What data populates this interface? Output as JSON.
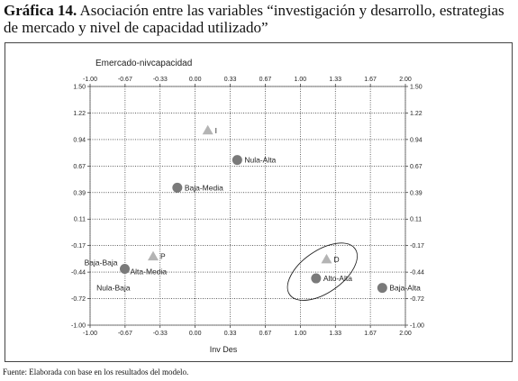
{
  "title_bold": "Gráfica 14.",
  "title_rest": " Asociación entre las variables “investigación y desarrollo, estrategias de mercado y nivel de capacidad utilizado”",
  "source": "Fuente: Elaborada con base en los resultados del modelo.",
  "colors": {
    "point": "#7a7a7a",
    "triangle": "#b4b4b4",
    "grid": "#000000"
  },
  "chart_data": {
    "type": "scatter",
    "title": "",
    "top_label": "Emercado-nivcapacidad",
    "xlabel": "Inv Des",
    "ylabel": "",
    "xlim": [
      -1.0,
      2.0
    ],
    "ylim": [
      -1.0,
      1.5
    ],
    "x_ticks": [
      "-1.00",
      "-0.67",
      "-0.33",
      "0.00",
      "0.33",
      "0.67",
      "1.00",
      "1.33",
      "1.67",
      "2.00"
    ],
    "y_ticks": [
      "1.50",
      "1.22",
      "0.94",
      "0.67",
      "0.39",
      "0.11",
      "-0.17",
      "-0.44",
      "-0.72",
      "-1.00"
    ],
    "grid": true,
    "points": [
      {
        "label": "I",
        "x": 0.12,
        "y": 1.04,
        "marker": "triangle"
      },
      {
        "label": "P",
        "x": -0.4,
        "y": -0.28,
        "marker": "triangle"
      },
      {
        "label": "D",
        "x": 1.25,
        "y": -0.31,
        "marker": "triangle"
      },
      {
        "label": "Nula-Alta",
        "x": 0.4,
        "y": 0.73,
        "marker": "circle"
      },
      {
        "label": "Baja-Media",
        "x": -0.17,
        "y": 0.44,
        "marker": "circle"
      },
      {
        "label": "Baja-Baja",
        "x": -0.67,
        "y": -0.41,
        "marker": "circle",
        "label_pos": "top-left"
      },
      {
        "label": "Alta-Media",
        "x": -0.67,
        "y": -0.41,
        "marker": "none",
        "label_pos": "right"
      },
      {
        "label": "Nula-Baja",
        "x": -0.67,
        "y": -0.41,
        "marker": "none",
        "label_pos": "below"
      },
      {
        "label": "Alto-Alta",
        "x": 1.15,
        "y": -0.51,
        "marker": "circle"
      },
      {
        "label": "Baja-Alta",
        "x": 1.78,
        "y": -0.61,
        "marker": "circle"
      }
    ],
    "annotations": [
      {
        "type": "ellipse",
        "cx": 1.21,
        "cy": -0.44,
        "rx": 0.38,
        "ry": 0.22,
        "rotation_deg": -35
      }
    ]
  }
}
